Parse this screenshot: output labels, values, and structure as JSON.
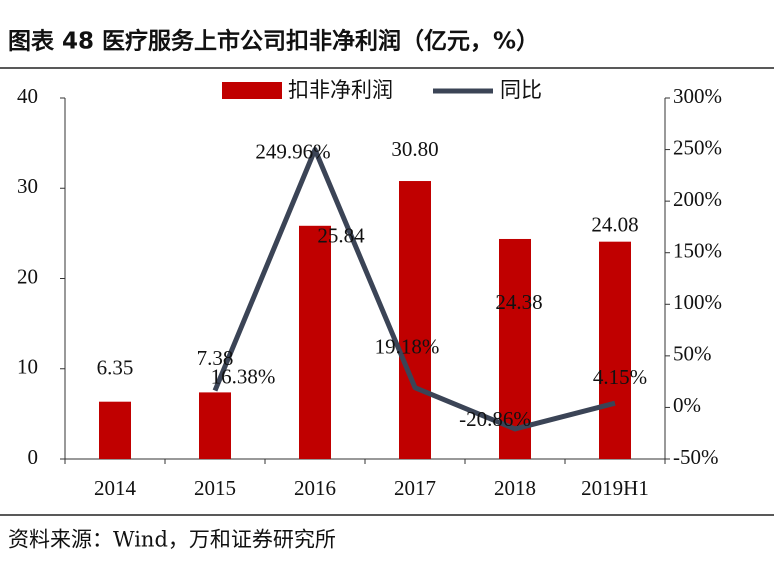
{
  "chart_data": {
    "type": "bar",
    "title": "图表 48  医疗服务上市公司扣非净利润（亿元，%）",
    "categories": [
      "2014",
      "2015",
      "2016",
      "2017",
      "2018",
      "2019H1"
    ],
    "series": [
      {
        "name": "扣非净利润",
        "type": "bar",
        "color": "#c00000",
        "values": [
          6.35,
          7.38,
          25.84,
          30.8,
          24.38,
          24.08
        ],
        "value_labels": [
          "6.35",
          "7.38",
          "25.84",
          "30.80",
          "24.38",
          "24.08"
        ]
      },
      {
        "name": "同比",
        "type": "line",
        "axis": "y2",
        "color": "#3b4456",
        "values": [
          null,
          16.38,
          249.96,
          19.18,
          -20.86,
          4.15
        ],
        "value_labels": [
          null,
          "16.38%",
          "249.96%",
          "19.18%",
          "-20.86%",
          "4.15%"
        ]
      }
    ],
    "ylim": [
      0,
      40
    ],
    "yticks": [
      0,
      10,
      20,
      30,
      40
    ],
    "y2lim": [
      -50,
      300
    ],
    "y2ticks": [
      {
        "value": -50,
        "label": "-50%"
      },
      {
        "value": 0,
        "label": "0%"
      },
      {
        "value": 50,
        "label": "50%"
      },
      {
        "value": 100,
        "label": "100%"
      },
      {
        "value": 150,
        "label": "150%"
      },
      {
        "value": 200,
        "label": "200%"
      },
      {
        "value": 250,
        "label": "250%"
      },
      {
        "value": 300,
        "label": "300%"
      }
    ],
    "legend": "top"
  },
  "source": "资料来源：Wind，万和证券研究所"
}
